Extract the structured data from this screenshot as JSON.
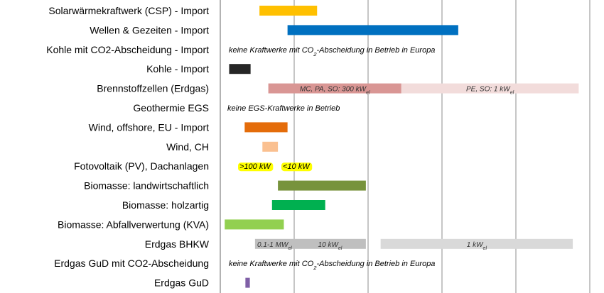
{
  "chart_data": {
    "type": "bar",
    "orientation": "horizontal",
    "title": "",
    "xlabel": "",
    "ylabel": "",
    "xlim": [
      0,
      50
    ],
    "grid": "vertical",
    "gridlines": [
      0,
      10,
      20,
      30,
      40,
      50
    ],
    "tick_labels_visible": false,
    "categories": [
      "Solarwärmekraftwerk (CSP) - Import",
      "Wellen & Gezeiten - Import",
      "Kohle mit CO2-Abscheidung - Import",
      "Kohle - Import",
      "Brennstoffzellen (Erdgas)",
      "Geothermie EGS",
      "Wind, offshore, EU - Import",
      "Wind, CH",
      "Fotovoltaik (PV), Dachanlagen",
      "Biomasse: landwirtschaftlich",
      "Biomasse: holzartig",
      "Biomasse: Abfallverwertung (KVA)",
      "Erdgas BHKW",
      "Erdgas GuD mit CO2-Abscheidung",
      "Erdgas GuD"
    ],
    "bars": [
      {
        "row": 0,
        "start": 5.3,
        "end": 13.1,
        "color": "#ffc000"
      },
      {
        "row": 1,
        "start": 9.1,
        "end": 32.2,
        "color": "#0070c0"
      },
      {
        "row": 3,
        "start": 1.2,
        "end": 4.1,
        "color": "#262626"
      },
      {
        "row": 4,
        "start": 6.5,
        "end": 24.5,
        "color": "#d99694",
        "label": "MC, PA, SO: 300 kWel"
      },
      {
        "row": 4,
        "start": 24.5,
        "end": 48.5,
        "color": "#f2dcdb",
        "label": "PE, SO: 1 kWel"
      },
      {
        "row": 6,
        "start": 3.3,
        "end": 9.1,
        "color": "#e46c0a"
      },
      {
        "row": 7,
        "start": 5.7,
        "end": 7.8,
        "color": "#fac090"
      },
      {
        "row": 9,
        "start": 7.8,
        "end": 19.7,
        "color": "#77933c"
      },
      {
        "row": 10,
        "start": 7.0,
        "end": 14.2,
        "color": "#00b050"
      },
      {
        "row": 11,
        "start": 0.6,
        "end": 8.6,
        "color": "#92d050"
      },
      {
        "row": 12,
        "start": 4.7,
        "end": 10.0,
        "color": "#bfbfbf",
        "label": "0.1-1 MWel"
      },
      {
        "row": 12,
        "start": 10.0,
        "end": 19.7,
        "color": "#bfbfbf",
        "label": "10 kWel"
      },
      {
        "row": 12,
        "start": 21.7,
        "end": 47.7,
        "color": "#d9d9d9",
        "label": "1 kWel"
      },
      {
        "row": 14,
        "start": 3.4,
        "end": 4.0,
        "color": "#7f5fa6"
      }
    ],
    "row_notes": [
      {
        "row": 2,
        "text": "keine Kraftwerke mit CO2-Abscheidung in Betrieb in Europa"
      },
      {
        "row": 5,
        "text": "keine EGS-Kraftwerke in Betrieb"
      },
      {
        "row": 8,
        "text": ">100 kW",
        "highlight": "#ffff00"
      },
      {
        "row": 8,
        "text": "<10 kW",
        "highlight": "#ffff00"
      },
      {
        "row": 13,
        "text": "keine Kraftwerke mit CO2-Abscheidung in Betrieb in Europa"
      }
    ]
  }
}
